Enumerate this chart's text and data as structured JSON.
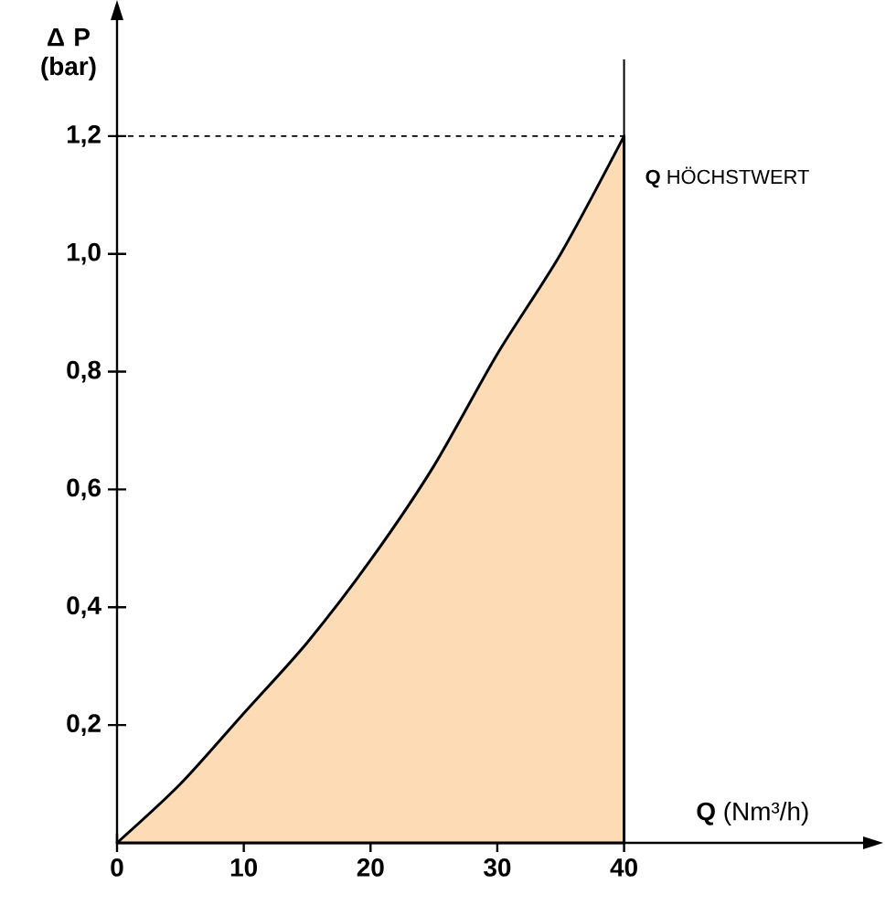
{
  "chart_data": {
    "type": "area",
    "xlabel": "**Q** (Nm³/h)",
    "ylabel": "Δ P (bar)",
    "x": [
      0,
      5,
      10,
      15,
      20,
      25,
      30,
      35,
      40
    ],
    "series": [
      {
        "color": "#fddcb5",
        "values": [
          0,
          0.1,
          0.22,
          0.34,
          0.48,
          0.64,
          0.83,
          1.0,
          1.2
        ]
      }
    ],
    "xlim": [
      0,
      59
    ],
    "ylim": [
      0,
      1.4
    ],
    "xticks": [
      0,
      10,
      20,
      30,
      40
    ],
    "yticks": [
      {
        "value": 0.2,
        "label": "0,2"
      },
      {
        "value": 0.4,
        "label": "0,4"
      },
      {
        "value": 0.6,
        "label": "0,6"
      },
      {
        "value": 0.8,
        "label": "0,8"
      },
      {
        "value": 1.0,
        "label": "1,0"
      },
      {
        "value": 1.2,
        "label": "1,2"
      }
    ],
    "ref_lines": [
      {
        "axis": "y",
        "value": 1.2,
        "line_style": "dashed"
      },
      {
        "axis": "x",
        "value": 40
      }
    ],
    "annotations": [
      {
        "text": "**Q** HÖCHSTWERT",
        "x": 40,
        "y": 1.13
      }
    ]
  }
}
